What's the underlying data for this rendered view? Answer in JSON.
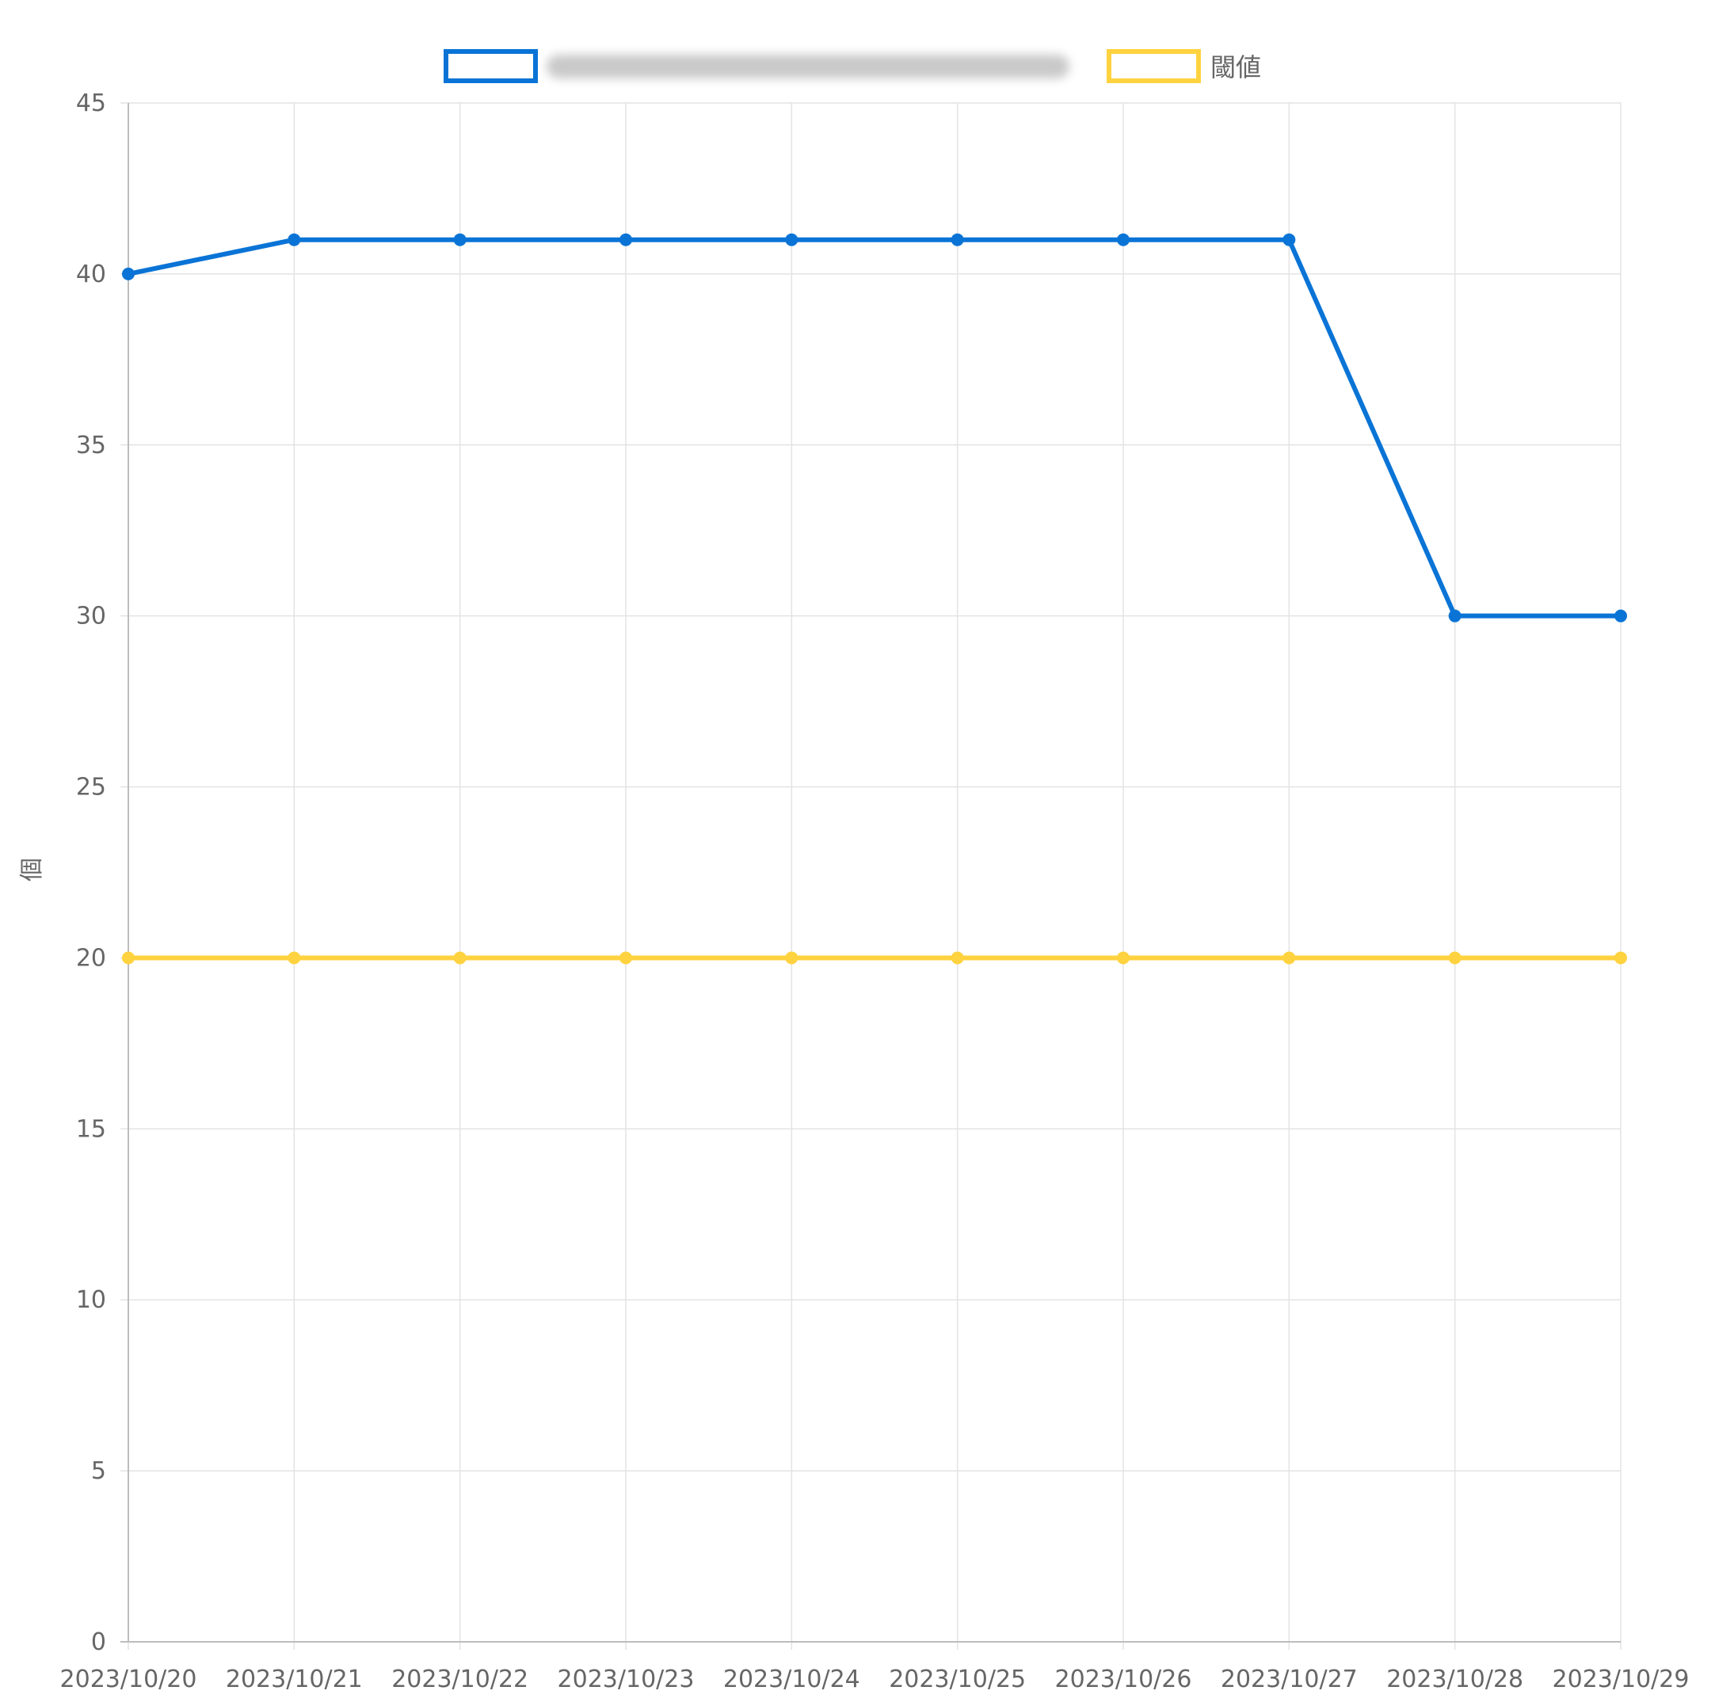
{
  "chart_data": {
    "type": "line",
    "title": "",
    "xlabel": "",
    "ylabel": "個",
    "ylim": [
      0,
      45
    ],
    "y_ticks": [
      0,
      5,
      10,
      15,
      20,
      25,
      30,
      35,
      40,
      45
    ],
    "grid": true,
    "legend_position": "top-center",
    "x": [
      "2023/10/20",
      "2023/10/21",
      "2023/10/22",
      "2023/10/23",
      "2023/10/24",
      "2023/10/25",
      "2023/10/26",
      "2023/10/27",
      "2023/10/28",
      "2023/10/29"
    ],
    "series": [
      {
        "name": "",
        "name_obscured": true,
        "color": "#0a74d6",
        "values": [
          40,
          41,
          41,
          41,
          41,
          41,
          41,
          41,
          30,
          30
        ]
      },
      {
        "name": "閾値",
        "color": "#ffd23f",
        "values": [
          20,
          20,
          20,
          20,
          20,
          20,
          20,
          20,
          20,
          20
        ]
      }
    ]
  }
}
